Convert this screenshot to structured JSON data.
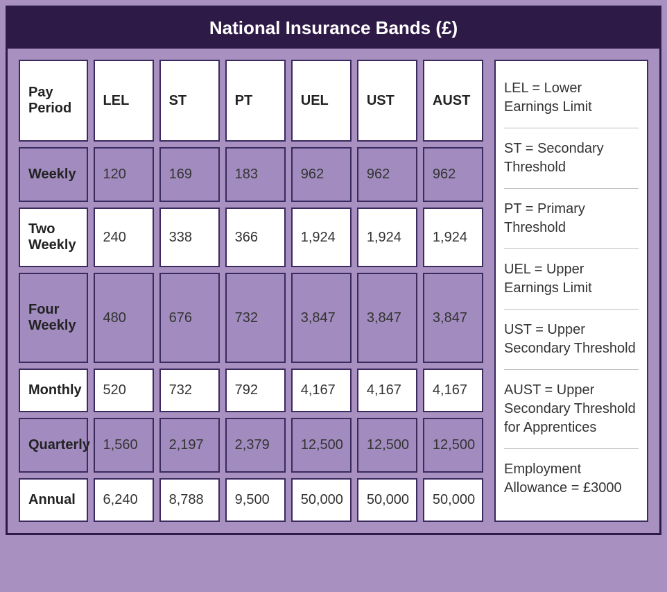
{
  "title": "National Insurance Bands (£)",
  "columns": [
    "Pay Period",
    "LEL",
    "ST",
    "PT",
    "UEL",
    "UST",
    "AUST"
  ],
  "rows": [
    {
      "label": "Weekly",
      "values": [
        "120",
        "169",
        "183",
        "962",
        "962",
        "962"
      ],
      "shade": "shade"
    },
    {
      "label": "Two Weekly",
      "values": [
        "240",
        "338",
        "366",
        "1,924",
        "1,924",
        "1,924"
      ],
      "shade": "white"
    },
    {
      "label": "Four Weekly",
      "values": [
        "480",
        "676",
        "732",
        "3,847",
        "3,847",
        "3,847"
      ],
      "shade": "shade-tall"
    },
    {
      "label": "Monthly",
      "values": [
        "520",
        "732",
        "792",
        "4,167",
        "4,167",
        "4,167"
      ],
      "shade": "white"
    },
    {
      "label": "Quarterly",
      "values": [
        "1,560",
        "2,197",
        "2,379",
        "12,500",
        "12,500",
        "12,500"
      ],
      "shade": "shade"
    },
    {
      "label": "Annual",
      "values": [
        "6,240",
        "8,788",
        "9,500",
        "50,000",
        "50,000",
        "50,000"
      ],
      "shade": "white"
    }
  ],
  "legend": [
    "LEL = Lower Earnings Limit",
    "ST = Secondary Threshold",
    "PT = Primary Threshold",
    "UEL = Upper Earnings Limit",
    "UST = Upper Secondary Threshold",
    "AUST = Upper Secondary Threshold for Apprentices",
    "Employment Allowance = £3000"
  ],
  "style": {
    "title_bg": "#2e1a47",
    "title_fg": "#ffffff",
    "frame_bg": "#a891c0",
    "border_color": "#3a2a5e",
    "row_white": "#ffffff",
    "row_shade": "#a28cbf",
    "font_family": "Segoe UI, Helvetica Neue, Arial, sans-serif",
    "title_fontsize": 26,
    "cell_fontsize": 20
  }
}
